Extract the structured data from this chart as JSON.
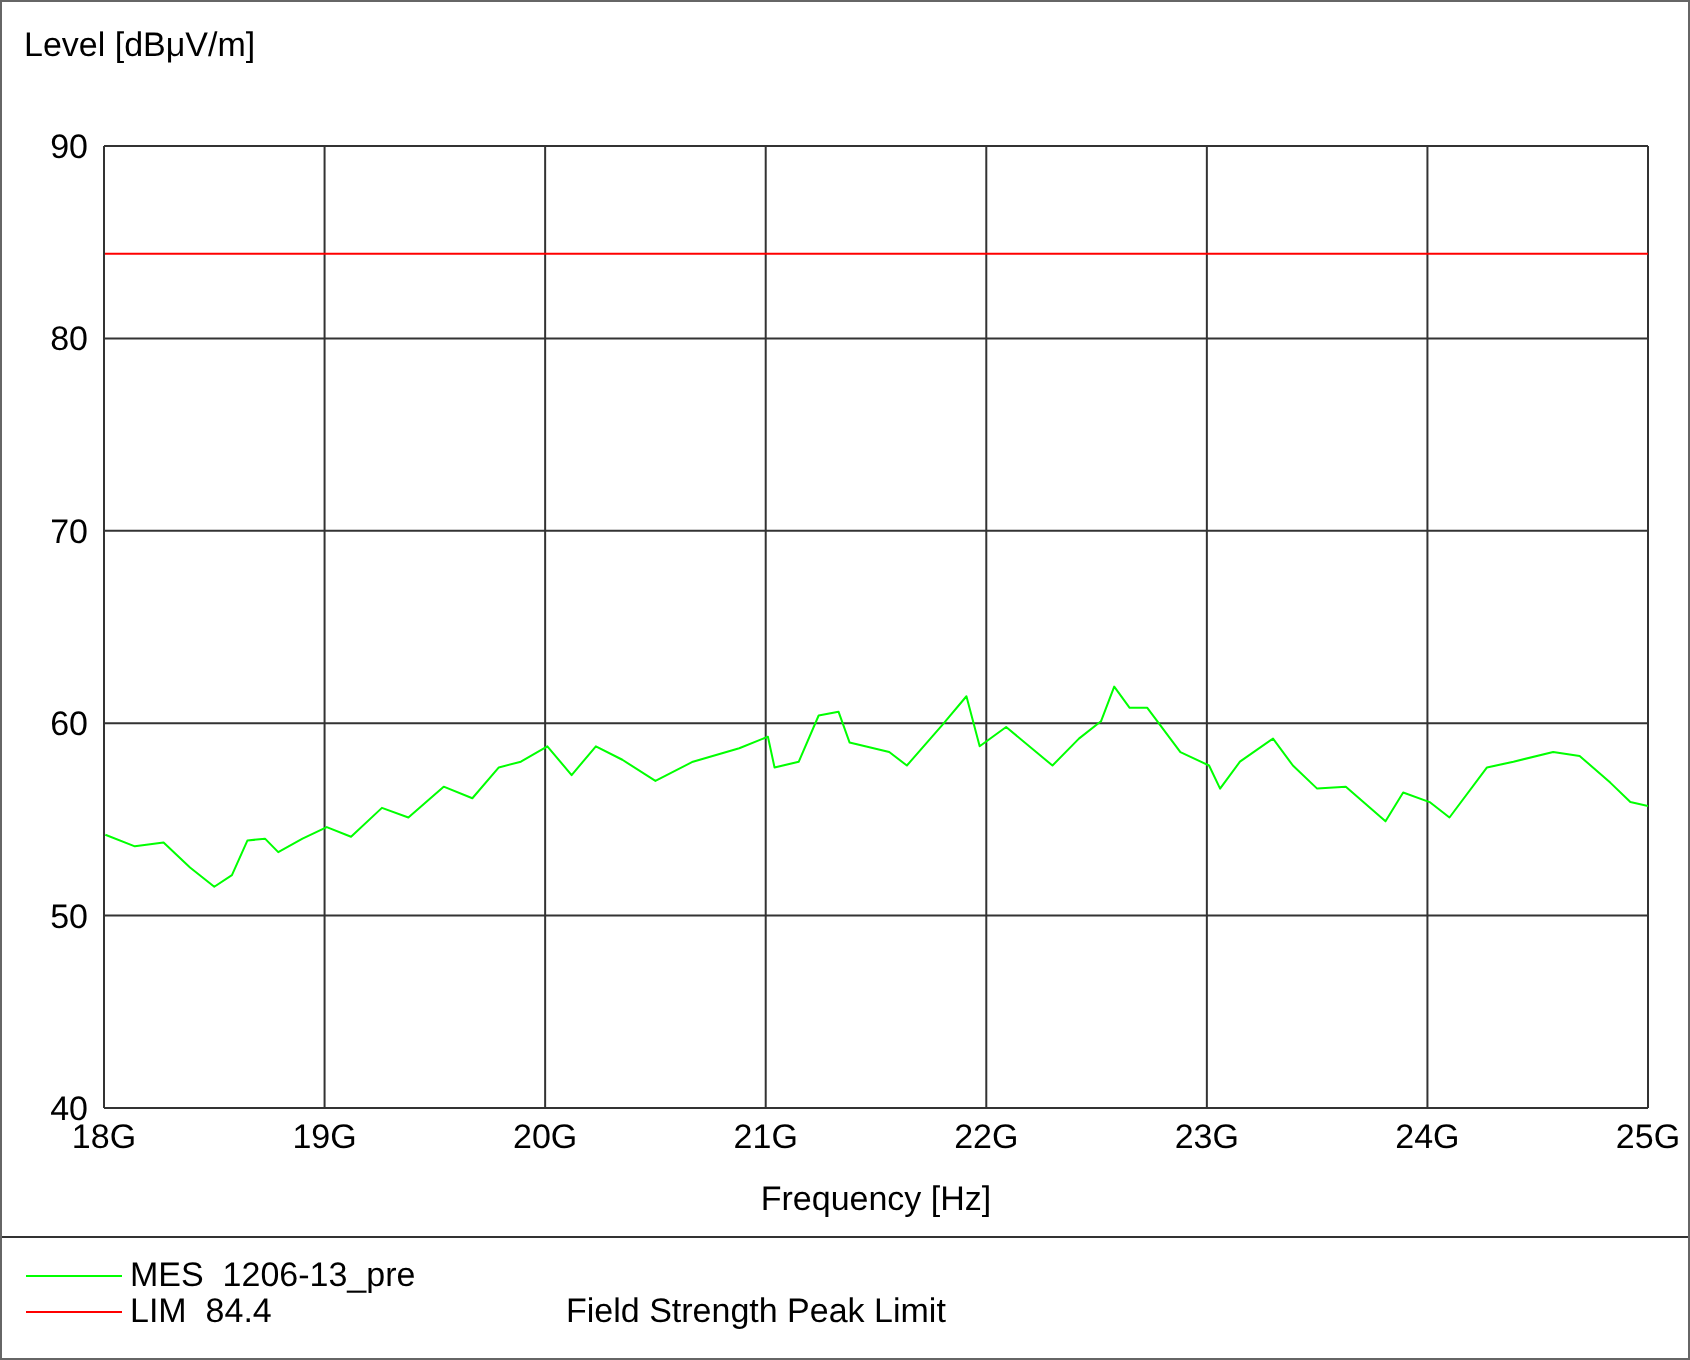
{
  "chart_data": {
    "type": "line",
    "ylabel": "Level [dBμV/m]",
    "xlabel": "Frequency [Hz]",
    "xlim": [
      18,
      25
    ],
    "xticks": [
      {
        "value": 18,
        "label": "18G"
      },
      {
        "value": 19,
        "label": "19G"
      },
      {
        "value": 20,
        "label": "20G"
      },
      {
        "value": 21,
        "label": "21G"
      },
      {
        "value": 22,
        "label": "22G"
      },
      {
        "value": 23,
        "label": "23G"
      },
      {
        "value": 24,
        "label": "24G"
      },
      {
        "value": 25,
        "label": "25G"
      }
    ],
    "ylim": [
      40,
      90
    ],
    "yticks": [
      40,
      50,
      60,
      70,
      80,
      90
    ],
    "grid": true,
    "legend": "bottom",
    "marker": "none",
    "line_style": "solid",
    "annotations": [
      "Field Strength Peak Limit"
    ],
    "series": [
      {
        "name": "MES  1206-13_pre",
        "color": "#00ff00",
        "x": [
          18.006,
          18.14,
          18.27,
          18.39,
          18.5,
          18.58,
          18.65,
          18.73,
          18.79,
          18.9,
          19.01,
          19.12,
          19.26,
          19.38,
          19.54,
          19.67,
          19.79,
          19.89,
          20.01,
          20.12,
          20.23,
          20.35,
          20.5,
          20.67,
          20.88,
          21.01,
          21.04,
          21.15,
          21.24,
          21.33,
          21.38,
          21.56,
          21.64,
          21.8,
          21.91,
          21.97,
          22.09,
          22.3,
          22.42,
          22.52,
          22.58,
          22.65,
          22.73,
          22.88,
          23.01,
          23.06,
          23.15,
          23.3,
          23.39,
          23.5,
          23.63,
          23.81,
          23.89,
          24.01,
          24.1,
          24.27,
          24.39,
          24.57,
          24.69,
          24.83,
          24.92,
          25
        ],
        "values": [
          54.2,
          53.6,
          53.8,
          52.5,
          51.5,
          52.1,
          53.9,
          54.0,
          53.3,
          54.0,
          54.6,
          54.1,
          55.6,
          55.1,
          56.7,
          56.1,
          57.7,
          58.0,
          58.8,
          57.3,
          58.8,
          58.1,
          57.0,
          58.0,
          58.7,
          59.3,
          57.7,
          58.0,
          60.4,
          60.6,
          59.0,
          58.5,
          57.8,
          59.9,
          61.4,
          58.8,
          59.8,
          57.8,
          59.2,
          60.1,
          61.9,
          60.8,
          60.8,
          58.5,
          57.8,
          56.6,
          58.0,
          59.2,
          57.8,
          56.6,
          56.7,
          54.9,
          56.4,
          55.9,
          55.1,
          57.7,
          58.0,
          58.5,
          58.3,
          56.9,
          55.9,
          55.7
        ]
      },
      {
        "name": "LIM  84.4",
        "color": "#ff0000",
        "x": [
          18,
          25
        ],
        "values": [
          84.4,
          84.4
        ]
      }
    ]
  }
}
